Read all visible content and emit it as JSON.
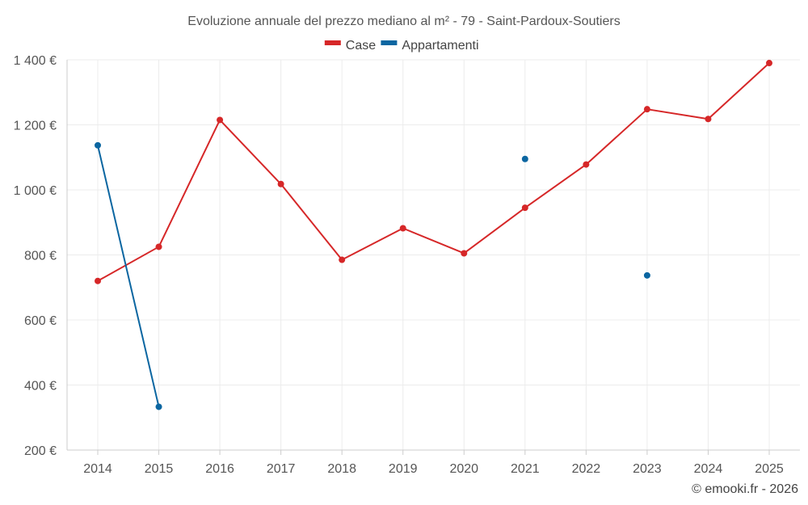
{
  "chart_data": {
    "type": "line",
    "title": "Evoluzione annuale del prezzo mediano al m² - 79 - Saint-Pardoux-Soutiers",
    "xlabel": "",
    "ylabel": "",
    "categories": [
      "2014",
      "2015",
      "2016",
      "2017",
      "2018",
      "2019",
      "2020",
      "2021",
      "2022",
      "2023",
      "2024",
      "2025"
    ],
    "ylim": [
      200,
      1400
    ],
    "yticks": [
      200,
      400,
      600,
      800,
      1000,
      1200,
      1400
    ],
    "ytick_labels": [
      "200 €",
      "400 €",
      "600 €",
      "800 €",
      "1 000 €",
      "1 200 €",
      "1 400 €"
    ],
    "grid": true,
    "legend_position": "top-center",
    "series": [
      {
        "name": "Case",
        "color": "#d62728",
        "values": [
          720,
          825,
          1215,
          1018,
          785,
          882,
          805,
          945,
          1078,
          1248,
          1218,
          1390
        ]
      },
      {
        "name": "Appartamenti",
        "color": "#0b66a1",
        "values": [
          1137,
          333,
          null,
          null,
          null,
          null,
          null,
          1095,
          null,
          737,
          null,
          null
        ]
      }
    ]
  },
  "footer": "© emooki.fr - 2026"
}
